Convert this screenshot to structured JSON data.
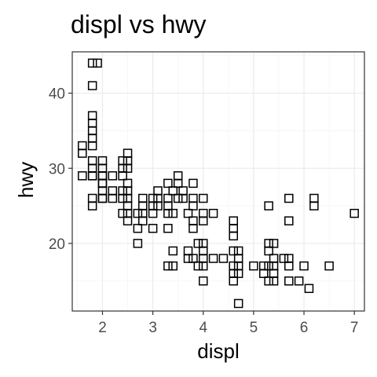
{
  "chart_data": {
    "type": "scatter",
    "title": "displ vs hwy",
    "xlabel": "displ",
    "ylabel": "hwy",
    "xlim": [
      1.4,
      7.2
    ],
    "ylim": [
      11,
      45.5
    ],
    "x_ticks": [
      2,
      3,
      4,
      5,
      6,
      7
    ],
    "y_ticks": [
      20,
      30,
      40
    ],
    "x_tick_labels": [
      "2",
      "3",
      "4",
      "5",
      "6",
      "7"
    ],
    "y_tick_labels": [
      "20",
      "30",
      "40"
    ],
    "grid": true,
    "marker": "open-square",
    "points": [
      [
        1.6,
        33
      ],
      [
        1.6,
        32
      ],
      [
        1.6,
        29
      ],
      [
        1.8,
        29
      ],
      [
        1.8,
        29
      ],
      [
        1.8,
        26
      ],
      [
        1.8,
        25
      ],
      [
        1.8,
        37
      ],
      [
        1.8,
        35
      ],
      [
        1.8,
        36
      ],
      [
        1.8,
        34
      ],
      [
        1.8,
        33
      ],
      [
        1.8,
        30
      ],
      [
        1.8,
        44
      ],
      [
        1.8,
        41
      ],
      [
        1.8,
        31
      ],
      [
        1.9,
        44
      ],
      [
        2.0,
        31
      ],
      [
        2.0,
        30
      ],
      [
        2.0,
        29
      ],
      [
        2.0,
        28
      ],
      [
        2.0,
        27
      ],
      [
        2.0,
        26
      ],
      [
        2.0,
        29
      ],
      [
        2.0,
        28
      ],
      [
        2.0,
        26
      ],
      [
        2.2,
        26
      ],
      [
        2.2,
        27
      ],
      [
        2.2,
        29
      ],
      [
        2.4,
        27
      ],
      [
        2.4,
        24
      ],
      [
        2.4,
        26
      ],
      [
        2.4,
        29
      ],
      [
        2.4,
        30
      ],
      [
        2.4,
        31
      ],
      [
        2.5,
        32
      ],
      [
        2.5,
        31
      ],
      [
        2.5,
        30
      ],
      [
        2.5,
        28
      ],
      [
        2.5,
        27
      ],
      [
        2.5,
        26
      ],
      [
        2.5,
        25
      ],
      [
        2.5,
        24
      ],
      [
        2.5,
        23
      ],
      [
        2.7,
        20
      ],
      [
        2.7,
        24
      ],
      [
        2.7,
        22
      ],
      [
        2.8,
        26
      ],
      [
        2.8,
        25
      ],
      [
        2.8,
        24
      ],
      [
        2.8,
        23
      ],
      [
        3.0,
        26
      ],
      [
        3.0,
        25
      ],
      [
        3.0,
        24
      ],
      [
        3.0,
        22
      ],
      [
        3.1,
        27
      ],
      [
        3.1,
        26
      ],
      [
        3.1,
        25
      ],
      [
        3.3,
        28
      ],
      [
        3.3,
        26
      ],
      [
        3.3,
        25
      ],
      [
        3.3,
        24
      ],
      [
        3.3,
        22
      ],
      [
        3.3,
        17
      ],
      [
        3.4,
        27
      ],
      [
        3.4,
        24
      ],
      [
        3.4,
        19
      ],
      [
        3.4,
        17
      ],
      [
        3.5,
        29
      ],
      [
        3.5,
        28
      ],
      [
        3.5,
        26
      ],
      [
        3.6,
        27
      ],
      [
        3.6,
        26
      ],
      [
        3.7,
        24
      ],
      [
        3.7,
        19
      ],
      [
        3.7,
        18
      ],
      [
        3.8,
        28
      ],
      [
        3.8,
        26
      ],
      [
        3.8,
        25
      ],
      [
        3.8,
        23
      ],
      [
        3.8,
        22
      ],
      [
        3.8,
        18
      ],
      [
        3.9,
        20
      ],
      [
        3.9,
        17
      ],
      [
        4.0,
        26
      ],
      [
        4.0,
        24
      ],
      [
        4.0,
        23
      ],
      [
        4.0,
        20
      ],
      [
        4.0,
        19
      ],
      [
        4.0,
        18
      ],
      [
        4.0,
        17
      ],
      [
        4.0,
        15
      ],
      [
        4.2,
        18
      ],
      [
        4.2,
        24
      ],
      [
        4.4,
        18
      ],
      [
        4.6,
        23
      ],
      [
        4.6,
        22
      ],
      [
        4.6,
        21
      ],
      [
        4.6,
        19
      ],
      [
        4.6,
        17
      ],
      [
        4.6,
        16
      ],
      [
        4.6,
        15
      ],
      [
        4.7,
        19
      ],
      [
        4.7,
        18
      ],
      [
        4.7,
        17
      ],
      [
        4.7,
        12
      ],
      [
        4.7,
        16
      ],
      [
        5.0,
        17
      ],
      [
        5.2,
        17
      ],
      [
        5.2,
        16
      ],
      [
        5.3,
        25
      ],
      [
        5.3,
        20
      ],
      [
        5.3,
        19
      ],
      [
        5.3,
        17
      ],
      [
        5.3,
        15
      ],
      [
        5.4,
        20
      ],
      [
        5.4,
        18
      ],
      [
        5.4,
        17
      ],
      [
        5.4,
        15
      ],
      [
        5.4,
        16
      ],
      [
        5.6,
        18
      ],
      [
        5.7,
        26
      ],
      [
        5.7,
        23
      ],
      [
        5.7,
        18
      ],
      [
        5.7,
        17
      ],
      [
        5.7,
        15
      ],
      [
        5.9,
        15
      ],
      [
        6.0,
        17
      ],
      [
        6.1,
        14
      ],
      [
        6.2,
        26
      ],
      [
        6.2,
        25
      ],
      [
        6.5,
        17
      ],
      [
        7.0,
        24
      ]
    ]
  }
}
